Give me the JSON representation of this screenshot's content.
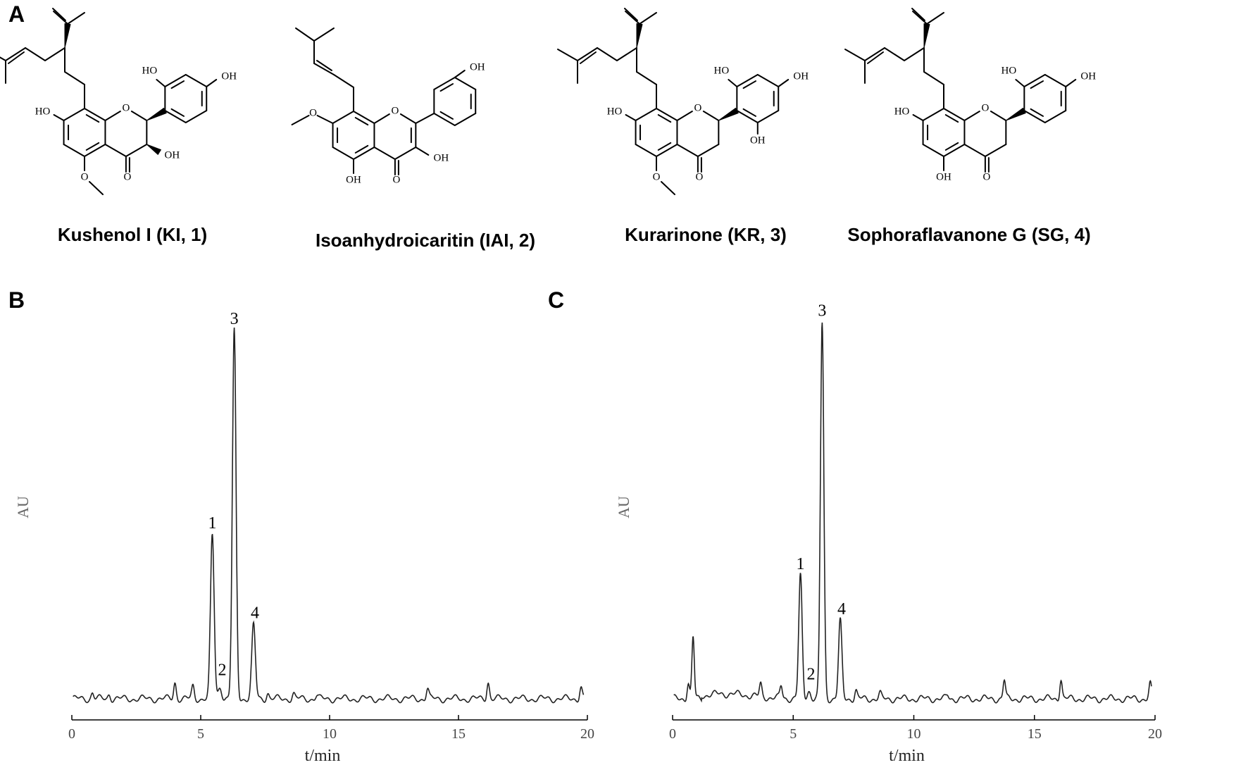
{
  "panels": {
    "A": "A",
    "B": "B",
    "C": "C"
  },
  "compounds": [
    {
      "name": "Kushenol I (KI, 1)"
    },
    {
      "name": "Isoanhydroicaritin (IAI, 2)"
    },
    {
      "name": "Kurarinone (KR, 3)"
    },
    {
      "name": "Sophoraflavanone G (SG, 4)"
    }
  ],
  "atom_labels": {
    "OH": "OH",
    "HO": "HO",
    "O": "O"
  },
  "chart_data": [
    {
      "type": "line",
      "panel": "B",
      "xlabel": "t/min",
      "ylabel": "AU",
      "xlim": [
        0,
        20
      ],
      "xticks": [
        0,
        5,
        10,
        15,
        20
      ],
      "baseline": 0.04,
      "peaks": [
        {
          "label": "1",
          "t": 5.45,
          "height": 0.4
        },
        {
          "label": "2",
          "t": 5.75,
          "height": 0.03
        },
        {
          "label": "3",
          "t": 6.3,
          "height": 0.9
        },
        {
          "label": "4",
          "t": 7.05,
          "height": 0.18
        }
      ],
      "minor_peaks": [
        {
          "t": 0.8,
          "height": 0.015
        },
        {
          "t": 1.45,
          "height": 0.012
        },
        {
          "t": 4.0,
          "height": 0.04
        },
        {
          "t": 4.7,
          "height": 0.03
        },
        {
          "t": 7.6,
          "height": 0.015
        },
        {
          "t": 8.6,
          "height": 0.012
        },
        {
          "t": 9.5,
          "height": 0.008
        },
        {
          "t": 13.8,
          "height": 0.025
        },
        {
          "t": 16.15,
          "height": 0.042
        },
        {
          "t": 19.75,
          "height": 0.03
        }
      ]
    },
    {
      "type": "line",
      "panel": "C",
      "xlabel": "t/min",
      "ylabel": "AU",
      "xlim": [
        0,
        20
      ],
      "xticks": [
        0,
        5,
        10,
        15,
        20
      ],
      "baseline": 0.06,
      "peaks": [
        {
          "label": "1",
          "t": 5.3,
          "height": 0.3
        },
        {
          "label": "2",
          "t": 5.65,
          "height": 0.02
        },
        {
          "label": "3",
          "t": 6.2,
          "height": 0.92
        },
        {
          "label": "4",
          "t": 6.95,
          "height": 0.19
        }
      ],
      "minor_peaks": [
        {
          "t": 0.65,
          "height": 0.04
        },
        {
          "t": 0.85,
          "height": 0.15
        },
        {
          "t": 3.65,
          "height": 0.03
        },
        {
          "t": 4.5,
          "height": 0.03
        },
        {
          "t": 7.6,
          "height": 0.02
        },
        {
          "t": 8.6,
          "height": 0.012
        },
        {
          "t": 11.4,
          "height": 0.008
        },
        {
          "t": 13.75,
          "height": 0.045
        },
        {
          "t": 16.1,
          "height": 0.05
        },
        {
          "t": 19.8,
          "height": 0.035
        }
      ]
    }
  ]
}
